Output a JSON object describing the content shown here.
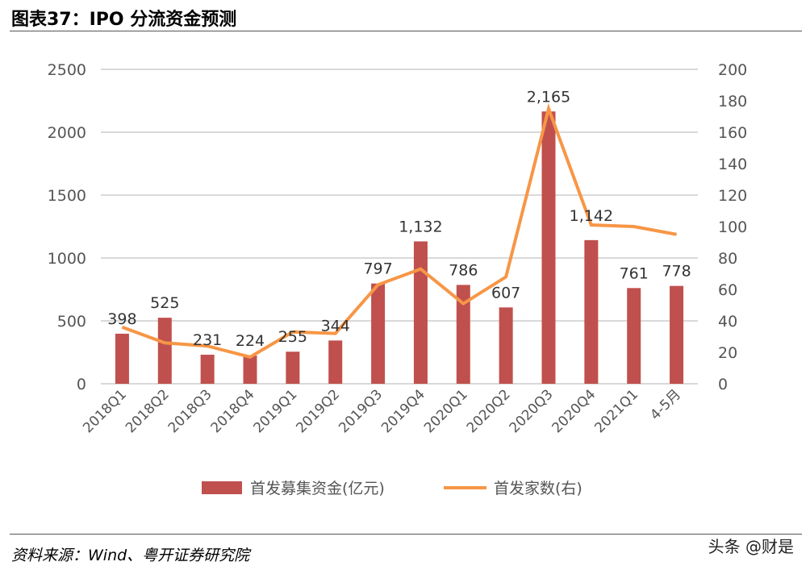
{
  "title": "图表37：IPO 分流资金预测",
  "source": "资料来源：Wind、粤开证券研究院",
  "watermark": "头条 @财是",
  "chart_data": {
    "type": "bar+line",
    "categories": [
      "2018Q1",
      "2018Q2",
      "2018Q3",
      "2018Q4",
      "2019Q1",
      "2019Q2",
      "2019Q3",
      "2019Q4",
      "2020Q1",
      "2020Q2",
      "2020Q3",
      "2020Q4",
      "2021Q1",
      "4-5月"
    ],
    "series": [
      {
        "name": "首发募集资金(亿元)",
        "type": "bar",
        "axis": "left",
        "color": "#C0504D",
        "values": [
          398,
          525,
          231,
          224,
          255,
          344,
          797,
          1132,
          786,
          607,
          2165,
          1142,
          761,
          778
        ],
        "labels": [
          "398",
          "525",
          "231",
          "224",
          "255",
          "344",
          "797",
          "1,132",
          "786",
          "607",
          "2,165",
          "1,142",
          "761",
          "778"
        ]
      },
      {
        "name": "首发家数(右)",
        "type": "line",
        "axis": "right",
        "color": "#F79646",
        "values": [
          36,
          26,
          24,
          17,
          33,
          32,
          63,
          73,
          51,
          68,
          175,
          101,
          100,
          95
        ]
      }
    ],
    "ylim_left": [
      0,
      2500
    ],
    "yticks_left": [
      "0",
      "500",
      "1000",
      "1500",
      "2000",
      "2500"
    ],
    "ylim_right": [
      0,
      200
    ],
    "yticks_right": [
      "0",
      "20",
      "40",
      "60",
      "80",
      "100",
      "120",
      "140",
      "160",
      "180",
      "200"
    ],
    "grid": true,
    "legend": "bottom"
  }
}
